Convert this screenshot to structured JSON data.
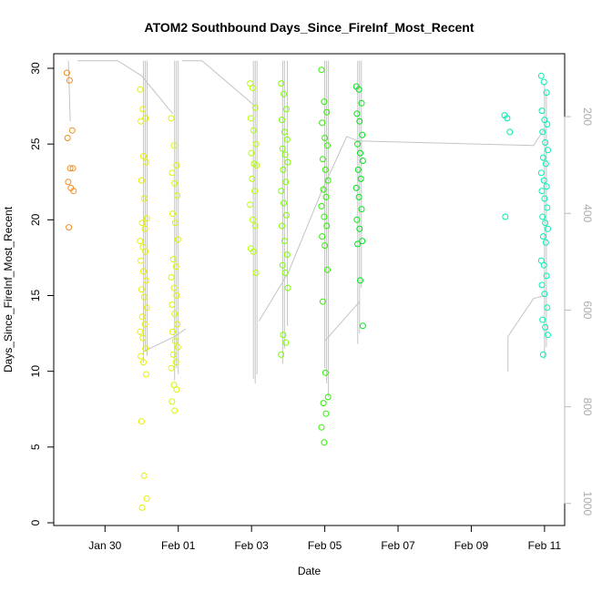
{
  "chart_data": {
    "type": "scatter",
    "title": "ATOM2 Southbound Days_Since_FireInf_Most_Recent",
    "xlabel": "Date",
    "ylabel": "Days_Since_FireInf_Most_Recent",
    "x_ticks": [
      "Jan 30",
      "Feb 01",
      "Feb 03",
      "Feb 05",
      "Feb 07",
      "Feb 09",
      "Feb 11"
    ],
    "x_tick_days": [
      30,
      32,
      34,
      36,
      38,
      40,
      42
    ],
    "xlim": [
      28.6,
      42.55
    ],
    "ylim": [
      0,
      30
    ],
    "y_ticks": [
      0,
      5,
      10,
      15,
      20,
      25,
      30
    ],
    "right_axis": {
      "ticks": [
        200,
        400,
        600,
        800,
        1000
      ],
      "ylim": [
        100,
        1040
      ],
      "inverted": true,
      "color": "#bbbbbb"
    },
    "grid": false,
    "series": [
      {
        "day": 29.05,
        "color": "#f08c1e",
        "y": [
          29.7,
          29.2,
          25.9,
          25.4,
          23.4,
          23.4,
          22.5,
          22.1,
          21.9,
          19.5
        ]
      },
      {
        "day": 31.05,
        "color": "#e8f000",
        "y": [
          28.6,
          27.3,
          26.7,
          26.5,
          24.2,
          23.8,
          22.6,
          21.4,
          20.1,
          19.8,
          19.4,
          18.6,
          18.2,
          17.9,
          17.3,
          16.6,
          16.0,
          15.4,
          14.9,
          14.2,
          13.6,
          13.1,
          12.6,
          12.2,
          11.5,
          11.0,
          10.6,
          9.8,
          6.7,
          3.1,
          1.6,
          1.0
        ]
      },
      {
        "day": 31.9,
        "color": "#dcf500",
        "y": [
          26.7,
          24.9,
          23.6,
          23.1,
          22.4,
          21.6,
          20.4,
          19.8,
          18.7,
          17.4,
          16.9,
          16.2,
          15.5,
          15.0,
          14.4,
          13.8,
          13.1,
          12.6,
          12.0,
          11.6,
          11.1,
          10.6,
          10.2,
          9.1,
          8.8,
          8.0,
          7.4
        ]
      },
      {
        "day": 34.05,
        "color": "#b4ff00",
        "y": [
          29.0,
          28.7,
          27.4,
          26.7,
          25.9,
          25.0,
          24.4,
          23.7,
          23.6,
          22.7,
          21.9,
          21.0,
          20.0,
          19.6,
          18.1,
          17.9,
          16.5
        ]
      },
      {
        "day": 34.9,
        "color": "#78ff00",
        "y": [
          29.0,
          28.3,
          27.3,
          26.6,
          25.8,
          25.3,
          24.7,
          24.3,
          23.8,
          23.3,
          22.5,
          21.9,
          21.1,
          20.3,
          19.6,
          18.6,
          17.7,
          17.0,
          16.5,
          15.5,
          12.4,
          11.9,
          11.1
        ]
      },
      {
        "day": 36.0,
        "color": "#2cf000",
        "y": [
          29.9,
          27.8,
          27.1,
          26.4,
          25.4,
          24.9,
          24.0,
          23.3,
          22.6,
          22.0,
          21.5,
          20.9,
          20.2,
          19.6,
          18.9,
          18.3,
          16.7,
          14.6,
          9.9,
          8.3,
          7.9,
          7.2,
          6.3,
          5.3
        ]
      },
      {
        "day": 36.95,
        "color": "#00e61e",
        "y": [
          28.8,
          28.6,
          27.7,
          27.0,
          26.5,
          25.6,
          25.0,
          24.4,
          23.9,
          23.3,
          22.7,
          22.1,
          21.5,
          20.7,
          20.0,
          19.4,
          18.6,
          18.4,
          16.0,
          13.0
        ]
      },
      {
        "day": 41.0,
        "color": "#00ebaa",
        "y": [
          26.9,
          26.7,
          25.8,
          20.2
        ]
      },
      {
        "day": 42.0,
        "color": "#00f0b4",
        "y": [
          29.5,
          29.1,
          28.4,
          27.2,
          26.6,
          26.3,
          25.8,
          25.1,
          24.6,
          24.1,
          23.7,
          23.1,
          22.6,
          22.2,
          21.9,
          21.4,
          20.8,
          20.2,
          19.8,
          19.4,
          18.9,
          18.5,
          17.3,
          17.0,
          16.3,
          15.7,
          15.1,
          14.2,
          13.4,
          12.9,
          12.4,
          11.1
        ]
      }
    ]
  }
}
